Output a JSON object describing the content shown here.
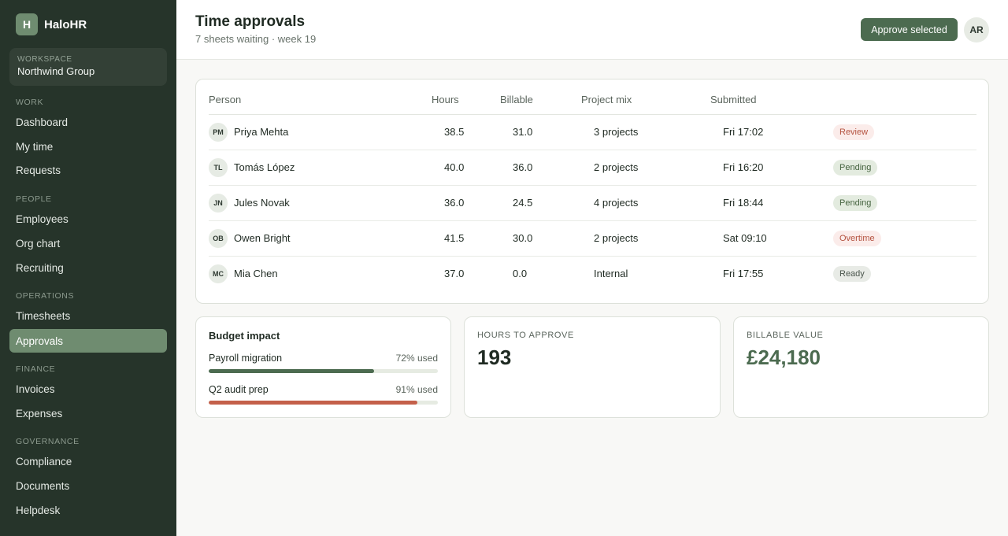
{
  "app": {
    "logo_letter": "H",
    "name": "HaloHR"
  },
  "workspace": {
    "label": "WORKSPACE",
    "name": "Northwind Group"
  },
  "nav": {
    "work": {
      "label": "WORK",
      "items": [
        "Dashboard",
        "My time",
        "Requests"
      ]
    },
    "people": {
      "label": "PEOPLE",
      "items": [
        "Employees",
        "Org chart",
        "Recruiting"
      ]
    },
    "operations": {
      "label": "OPERATIONS",
      "items": [
        "Timesheets",
        "Approvals"
      ]
    },
    "finance": {
      "label": "FINANCE",
      "items": [
        "Invoices",
        "Expenses"
      ]
    },
    "governance": {
      "label": "GOVERNANCE",
      "items": [
        "Compliance",
        "Documents",
        "Helpdesk"
      ]
    },
    "active": "Approvals"
  },
  "header": {
    "title": "Time approvals",
    "subtitle": "7 sheets waiting · week 19",
    "approve_label": "Approve selected",
    "user_initials": "AR"
  },
  "table": {
    "columns": [
      "Person",
      "Hours",
      "Billable",
      "Project mix",
      "Submitted"
    ],
    "rows": [
      {
        "initials": "PM",
        "name": "Priya Mehta",
        "hours": "38.5",
        "billable": "31.0",
        "mix": "3 projects",
        "submitted": "Fri 17:02",
        "status": "Review"
      },
      {
        "initials": "TL",
        "name": "Tomás López",
        "hours": "40.0",
        "billable": "36.0",
        "mix": "2 projects",
        "submitted": "Fri 16:20",
        "status": "Pending"
      },
      {
        "initials": "JN",
        "name": "Jules Novak",
        "hours": "36.0",
        "billable": "24.5",
        "mix": "4 projects",
        "submitted": "Fri 18:44",
        "status": "Pending"
      },
      {
        "initials": "OB",
        "name": "Owen Bright",
        "hours": "41.5",
        "billable": "30.0",
        "mix": "2 projects",
        "submitted": "Sat 09:10",
        "status": "Overtime"
      },
      {
        "initials": "MC",
        "name": "Mia Chen",
        "hours": "37.0",
        "billable": "0.0",
        "mix": "Internal",
        "submitted": "Fri 17:55",
        "status": "Ready"
      }
    ]
  },
  "status_colors": {
    "Review": {
      "bg": "#fbecea",
      "fg": "#b4523f"
    },
    "Pending": {
      "bg": "#e3ebdf",
      "fg": "#45633f"
    },
    "Overtime": {
      "bg": "#fbecea",
      "fg": "#b4523f"
    },
    "Ready": {
      "bg": "#e8ebe6",
      "fg": "#4a554c"
    }
  },
  "budget": {
    "title": "Budget impact",
    "items": [
      {
        "label": "Payroll migration",
        "value_text": "72% used",
        "percent": 72,
        "color": "#4c6b50"
      },
      {
        "label": "Q2 audit prep",
        "value_text": "91% used",
        "percent": 91,
        "color": "#c4604a"
      }
    ]
  },
  "stats": {
    "hours": {
      "label": "HOURS TO APPROVE",
      "value": "193",
      "color": "#1f2a22"
    },
    "billable": {
      "label": "BILLABLE VALUE",
      "value": "£24,180",
      "color": "#4c6b50"
    }
  },
  "icons": {
    "logo": "halohr-logo-icon"
  }
}
